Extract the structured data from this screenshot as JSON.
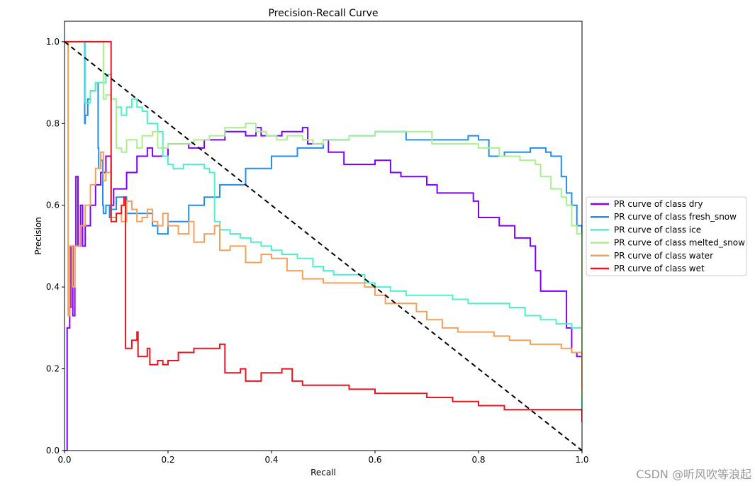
{
  "chart_data": {
    "type": "line",
    "title": "Precision-Recall Curve",
    "xlabel": "Recall",
    "ylabel": "Precision",
    "xlim": [
      0,
      1.0
    ],
    "ylim": [
      0,
      1.05
    ],
    "xticks": [
      "0.0",
      "0.2",
      "0.4",
      "0.6",
      "0.8",
      "1.0"
    ],
    "yticks": [
      "0.0",
      "0.2",
      "0.4",
      "0.6",
      "0.8",
      "1.0"
    ],
    "grid": false,
    "legend_position": "center-right",
    "reference_line": {
      "style": "dashed",
      "color": "#000000",
      "points": [
        [
          0,
          1.0
        ],
        [
          1.0,
          0.0
        ]
      ]
    },
    "series": [
      {
        "name": "PR curve of class dry",
        "color": "#7f00ff",
        "points": [
          [
            0,
            0
          ],
          [
            0.005,
            0.3
          ],
          [
            0.01,
            0.35
          ],
          [
            0.012,
            0.5
          ],
          [
            0.016,
            0.33
          ],
          [
            0.02,
            0.5
          ],
          [
            0.022,
            0.67
          ],
          [
            0.026,
            0.5
          ],
          [
            0.031,
            0.6
          ],
          [
            0.035,
            0.5
          ],
          [
            0.04,
            0.55
          ],
          [
            0.05,
            0.6
          ],
          [
            0.06,
            0.65
          ],
          [
            0.07,
            0.68
          ],
          [
            0.08,
            0.72
          ],
          [
            0.09,
            0.6
          ],
          [
            0.095,
            0.64
          ],
          [
            0.12,
            0.68
          ],
          [
            0.14,
            0.72
          ],
          [
            0.16,
            0.74
          ],
          [
            0.17,
            0.72
          ],
          [
            0.2,
            0.75
          ],
          [
            0.24,
            0.74
          ],
          [
            0.27,
            0.76
          ],
          [
            0.3,
            0.76
          ],
          [
            0.31,
            0.78
          ],
          [
            0.35,
            0.77
          ],
          [
            0.37,
            0.79
          ],
          [
            0.38,
            0.77
          ],
          [
            0.42,
            0.78
          ],
          [
            0.46,
            0.79
          ],
          [
            0.47,
            0.75
          ],
          [
            0.5,
            0.76
          ],
          [
            0.51,
            0.73
          ],
          [
            0.54,
            0.7
          ],
          [
            0.58,
            0.7
          ],
          [
            0.6,
            0.71
          ],
          [
            0.63,
            0.68
          ],
          [
            0.65,
            0.67
          ],
          [
            0.7,
            0.65
          ],
          [
            0.72,
            0.63
          ],
          [
            0.78,
            0.63
          ],
          [
            0.79,
            0.61
          ],
          [
            0.8,
            0.57
          ],
          [
            0.84,
            0.55
          ],
          [
            0.87,
            0.52
          ],
          [
            0.9,
            0.5
          ],
          [
            0.91,
            0.44
          ],
          [
            0.92,
            0.39
          ],
          [
            0.96,
            0.39
          ],
          [
            0.97,
            0.3
          ],
          [
            0.98,
            0.24
          ],
          [
            0.99,
            0.23
          ],
          [
            1.0,
            0.21
          ],
          [
            1.0,
            0.08
          ]
        ]
      },
      {
        "name": "PR curve of class fresh_snow",
        "color": "#1e8ff0",
        "points": [
          [
            0.038,
            1.0
          ],
          [
            0.039,
            0.8
          ],
          [
            0.04,
            0.82
          ],
          [
            0.045,
            0.86
          ],
          [
            0.05,
            0.88
          ],
          [
            0.06,
            0.9
          ],
          [
            0.065,
            0.74
          ],
          [
            0.066,
            0.69
          ],
          [
            0.07,
            0.71
          ],
          [
            0.074,
            0.6
          ],
          [
            0.075,
            0.58
          ],
          [
            0.08,
            0.6
          ],
          [
            0.087,
            0.57
          ],
          [
            0.09,
            0.59
          ],
          [
            0.1,
            0.62
          ],
          [
            0.11,
            0.62
          ],
          [
            0.12,
            0.58
          ],
          [
            0.14,
            0.58
          ],
          [
            0.17,
            0.55
          ],
          [
            0.18,
            0.53
          ],
          [
            0.2,
            0.56
          ],
          [
            0.24,
            0.6
          ],
          [
            0.27,
            0.62
          ],
          [
            0.3,
            0.65
          ],
          [
            0.35,
            0.69
          ],
          [
            0.4,
            0.72
          ],
          [
            0.45,
            0.74
          ],
          [
            0.5,
            0.76
          ],
          [
            0.55,
            0.77
          ],
          [
            0.6,
            0.78
          ],
          [
            0.64,
            0.78
          ],
          [
            0.66,
            0.76
          ],
          [
            0.7,
            0.76
          ],
          [
            0.75,
            0.76
          ],
          [
            0.78,
            0.77
          ],
          [
            0.8,
            0.76
          ],
          [
            0.82,
            0.72
          ],
          [
            0.85,
            0.73
          ],
          [
            0.9,
            0.74
          ],
          [
            0.93,
            0.73
          ],
          [
            0.94,
            0.72
          ],
          [
            0.96,
            0.67
          ],
          [
            0.97,
            0.63
          ],
          [
            0.98,
            0.6
          ],
          [
            0.99,
            0.55
          ],
          [
            1.0,
            0.54
          ],
          [
            1.0,
            0.1
          ]
        ]
      },
      {
        "name": "PR curve of class ice",
        "color": "#4df0c8",
        "points": [
          [
            0.038,
            1.0
          ],
          [
            0.04,
            0.85
          ],
          [
            0.05,
            0.88
          ],
          [
            0.06,
            0.9
          ],
          [
            0.07,
            0.9
          ],
          [
            0.08,
            0.92
          ],
          [
            0.09,
            0.86
          ],
          [
            0.1,
            0.84
          ],
          [
            0.11,
            0.82
          ],
          [
            0.12,
            0.84
          ],
          [
            0.13,
            0.86
          ],
          [
            0.14,
            0.84
          ],
          [
            0.15,
            0.83
          ],
          [
            0.16,
            0.8
          ],
          [
            0.18,
            0.78
          ],
          [
            0.19,
            0.72
          ],
          [
            0.2,
            0.7
          ],
          [
            0.21,
            0.69
          ],
          [
            0.23,
            0.7
          ],
          [
            0.25,
            0.7
          ],
          [
            0.27,
            0.69
          ],
          [
            0.28,
            0.68
          ],
          [
            0.29,
            0.56
          ],
          [
            0.3,
            0.54
          ],
          [
            0.32,
            0.53
          ],
          [
            0.34,
            0.52
          ],
          [
            0.36,
            0.51
          ],
          [
            0.38,
            0.5
          ],
          [
            0.4,
            0.49
          ],
          [
            0.42,
            0.48
          ],
          [
            0.45,
            0.47
          ],
          [
            0.48,
            0.45
          ],
          [
            0.5,
            0.44
          ],
          [
            0.52,
            0.43
          ],
          [
            0.55,
            0.43
          ],
          [
            0.58,
            0.41
          ],
          [
            0.6,
            0.4
          ],
          [
            0.63,
            0.39
          ],
          [
            0.66,
            0.38
          ],
          [
            0.7,
            0.38
          ],
          [
            0.73,
            0.38
          ],
          [
            0.75,
            0.37
          ],
          [
            0.78,
            0.36
          ],
          [
            0.82,
            0.36
          ],
          [
            0.86,
            0.35
          ],
          [
            0.89,
            0.33
          ],
          [
            0.92,
            0.32
          ],
          [
            0.95,
            0.31
          ],
          [
            0.98,
            0.3
          ],
          [
            1.0,
            0.29
          ],
          [
            1.0,
            0.1
          ]
        ]
      },
      {
        "name": "PR curve of class melted_snow",
        "color": "#a8f08c",
        "points": [
          [
            0.07,
            1.0
          ],
          [
            0.075,
            0.86
          ],
          [
            0.08,
            0.87
          ],
          [
            0.09,
            0.86
          ],
          [
            0.1,
            0.74
          ],
          [
            0.11,
            0.73
          ],
          [
            0.12,
            0.76
          ],
          [
            0.14,
            0.74
          ],
          [
            0.15,
            0.77
          ],
          [
            0.17,
            0.78
          ],
          [
            0.18,
            0.74
          ],
          [
            0.2,
            0.75
          ],
          [
            0.22,
            0.75
          ],
          [
            0.25,
            0.76
          ],
          [
            0.28,
            0.77
          ],
          [
            0.31,
            0.79
          ],
          [
            0.35,
            0.8
          ],
          [
            0.37,
            0.78
          ],
          [
            0.39,
            0.77
          ],
          [
            0.41,
            0.76
          ],
          [
            0.43,
            0.77
          ],
          [
            0.46,
            0.76
          ],
          [
            0.48,
            0.75
          ],
          [
            0.5,
            0.76
          ],
          [
            0.55,
            0.77
          ],
          [
            0.6,
            0.78
          ],
          [
            0.65,
            0.78
          ],
          [
            0.7,
            0.78
          ],
          [
            0.71,
            0.75
          ],
          [
            0.75,
            0.75
          ],
          [
            0.8,
            0.74
          ],
          [
            0.84,
            0.72
          ],
          [
            0.88,
            0.71
          ],
          [
            0.91,
            0.7
          ],
          [
            0.92,
            0.67
          ],
          [
            0.94,
            0.64
          ],
          [
            0.96,
            0.62
          ],
          [
            0.97,
            0.6
          ],
          [
            0.98,
            0.55
          ],
          [
            0.99,
            0.53
          ],
          [
            1.0,
            0.51
          ],
          [
            1.0,
            0.13
          ]
        ]
      },
      {
        "name": "PR curve of class water",
        "color": "#f5a05a",
        "points": [
          [
            0.005,
            1.0
          ],
          [
            0.007,
            0.33
          ],
          [
            0.01,
            0.5
          ],
          [
            0.015,
            0.4
          ],
          [
            0.02,
            0.5
          ],
          [
            0.03,
            0.55
          ],
          [
            0.04,
            0.6
          ],
          [
            0.05,
            0.65
          ],
          [
            0.06,
            0.69
          ],
          [
            0.07,
            0.73
          ],
          [
            0.075,
            0.66
          ],
          [
            0.08,
            0.68
          ],
          [
            0.09,
            0.57
          ],
          [
            0.1,
            0.58
          ],
          [
            0.11,
            0.56
          ],
          [
            0.12,
            0.61
          ],
          [
            0.13,
            0.59
          ],
          [
            0.14,
            0.56
          ],
          [
            0.15,
            0.57
          ],
          [
            0.16,
            0.59
          ],
          [
            0.17,
            0.56
          ],
          [
            0.18,
            0.55
          ],
          [
            0.19,
            0.58
          ],
          [
            0.2,
            0.55
          ],
          [
            0.22,
            0.53
          ],
          [
            0.24,
            0.56
          ],
          [
            0.25,
            0.51
          ],
          [
            0.27,
            0.53
          ],
          [
            0.29,
            0.55
          ],
          [
            0.3,
            0.49
          ],
          [
            0.32,
            0.5
          ],
          [
            0.34,
            0.5
          ],
          [
            0.35,
            0.46
          ],
          [
            0.38,
            0.48
          ],
          [
            0.4,
            0.47
          ],
          [
            0.43,
            0.44
          ],
          [
            0.46,
            0.42
          ],
          [
            0.5,
            0.41
          ],
          [
            0.55,
            0.41
          ],
          [
            0.58,
            0.4
          ],
          [
            0.6,
            0.38
          ],
          [
            0.62,
            0.36
          ],
          [
            0.65,
            0.36
          ],
          [
            0.68,
            0.34
          ],
          [
            0.7,
            0.32
          ],
          [
            0.73,
            0.3
          ],
          [
            0.76,
            0.29
          ],
          [
            0.8,
            0.29
          ],
          [
            0.83,
            0.28
          ],
          [
            0.86,
            0.27
          ],
          [
            0.9,
            0.26
          ],
          [
            0.93,
            0.26
          ],
          [
            0.96,
            0.25
          ],
          [
            0.98,
            0.24
          ],
          [
            1.0,
            0.24
          ],
          [
            1.0,
            0.15
          ]
        ]
      },
      {
        "name": "PR curve of class wet",
        "color": "#e8141e",
        "points": [
          [
            0.0,
            1.0
          ],
          [
            0.09,
            1.0
          ],
          [
            0.09,
            0.56
          ],
          [
            0.1,
            0.58
          ],
          [
            0.11,
            0.6
          ],
          [
            0.115,
            0.62
          ],
          [
            0.118,
            0.25
          ],
          [
            0.13,
            0.27
          ],
          [
            0.14,
            0.29
          ],
          [
            0.142,
            0.23
          ],
          [
            0.16,
            0.25
          ],
          [
            0.165,
            0.21
          ],
          [
            0.18,
            0.22
          ],
          [
            0.19,
            0.21
          ],
          [
            0.2,
            0.22
          ],
          [
            0.22,
            0.24
          ],
          [
            0.25,
            0.25
          ],
          [
            0.28,
            0.25
          ],
          [
            0.3,
            0.26
          ],
          [
            0.31,
            0.19
          ],
          [
            0.34,
            0.2
          ],
          [
            0.35,
            0.17
          ],
          [
            0.38,
            0.19
          ],
          [
            0.42,
            0.2
          ],
          [
            0.44,
            0.17
          ],
          [
            0.46,
            0.16
          ],
          [
            0.5,
            0.16
          ],
          [
            0.55,
            0.15
          ],
          [
            0.6,
            0.14
          ],
          [
            0.65,
            0.14
          ],
          [
            0.7,
            0.13
          ],
          [
            0.75,
            0.12
          ],
          [
            0.8,
            0.11
          ],
          [
            0.85,
            0.1
          ],
          [
            0.9,
            0.1
          ],
          [
            0.95,
            0.1
          ],
          [
            1.0,
            0.1
          ],
          [
            1.0,
            0.07
          ]
        ]
      }
    ]
  },
  "watermark": "CSDN @听风吹等浪起"
}
